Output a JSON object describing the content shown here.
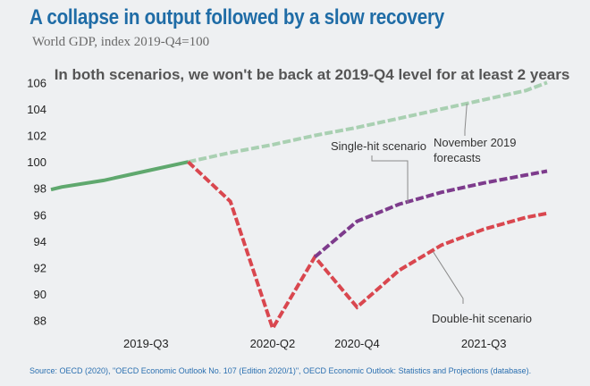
{
  "title": "A collapse in output followed by a slow recovery",
  "subtitle": "World GDP, index 2019-Q4=100",
  "source": "Source: OECD (2020), \"OECD Economic Outlook No. 107 (Edition 2020/1)\", OECD Economic Outlook: Statistics and Projections (database).",
  "colors": {
    "history": "#5fa86e",
    "pre_covid_forecast": "#a9d0b2",
    "double_hit": "#d9474f",
    "single_hit": "#7d3b8c",
    "title": "#1f6ca6"
  },
  "chart_data": {
    "type": "line",
    "headline": "In both scenarios, we won't be back at 2019-Q4 level for at least 2 years",
    "x_labels": [
      "2019-Q3",
      "2020-Q2",
      "2020-Q4",
      "2021-Q3"
    ],
    "x_tick_positions": [
      3,
      6,
      8,
      11
    ],
    "ylim": [
      87.5,
      106.3
    ],
    "yticks": [
      88,
      90,
      92,
      94,
      96,
      98,
      100,
      102,
      104,
      106
    ],
    "xlim": [
      0.75,
      12.5
    ],
    "grid": false,
    "series": [
      {
        "key": "history",
        "style": "solid",
        "points": [
          [
            0.75,
            97.9
          ],
          [
            1,
            98.1
          ],
          [
            2,
            98.6
          ],
          [
            3,
            99.3
          ],
          [
            4,
            100
          ]
        ]
      },
      {
        "key": "pre_covid_forecast",
        "name": "November 2019 forecasts",
        "style": "dashed",
        "points": [
          [
            4,
            100
          ],
          [
            5,
            100.7
          ],
          [
            6,
            101.3
          ],
          [
            7,
            102.0
          ],
          [
            8,
            102.6
          ],
          [
            9,
            103.3
          ],
          [
            10,
            104.0
          ],
          [
            11,
            104.7
          ],
          [
            12,
            105.4
          ],
          [
            12.5,
            106.0
          ]
        ]
      },
      {
        "key": "double_hit",
        "name": "Double-hit scenario",
        "style": "dashed",
        "points": [
          [
            4,
            100
          ],
          [
            5,
            97.0
          ],
          [
            6,
            87.4
          ],
          [
            7,
            92.8
          ],
          [
            8,
            89.0
          ],
          [
            9,
            91.8
          ],
          [
            10,
            93.7
          ],
          [
            11,
            94.9
          ],
          [
            12,
            95.8
          ],
          [
            12.5,
            96.1
          ]
        ]
      },
      {
        "key": "single_hit",
        "name": "Single-hit scenario",
        "style": "dashed",
        "points": [
          [
            7,
            92.8
          ],
          [
            8,
            95.5
          ],
          [
            9,
            96.8
          ],
          [
            10,
            97.7
          ],
          [
            11,
            98.4
          ],
          [
            12,
            99.0
          ],
          [
            12.5,
            99.3
          ]
        ]
      }
    ],
    "annotations": [
      {
        "text_lines": [
          "Single-hit scenario"
        ],
        "series": "single_hit"
      },
      {
        "text_lines": [
          "November 2019",
          "forecasts"
        ],
        "series": "pre_covid_forecast"
      },
      {
        "text_lines": [
          "Double-hit scenario"
        ],
        "series": "double_hit"
      }
    ]
  }
}
